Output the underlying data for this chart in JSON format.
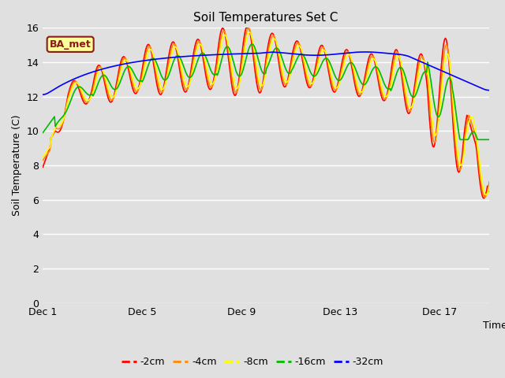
{
  "title": "Soil Temperatures Set C",
  "xlabel": "Time",
  "ylabel": "Soil Temperature (C)",
  "ylim": [
    0,
    16
  ],
  "yticks": [
    0,
    2,
    4,
    6,
    8,
    10,
    12,
    14,
    16
  ],
  "bg_color": "#e0e0e0",
  "colors": {
    "-2cm": "#ff0000",
    "-4cm": "#ff8c00",
    "-8cm": "#ffff00",
    "-16cm": "#00bb00",
    "-32cm": "#0000ff"
  },
  "xtick_labels": [
    "Dec 1",
    "Dec 5",
    "Dec 9",
    "Dec 13",
    "Dec 17"
  ],
  "xtick_positions": [
    0,
    4,
    8,
    12,
    16
  ],
  "annotation_text": "BA_met",
  "annotation_bg": "#ffff99",
  "annotation_border": "#8b1a1a",
  "legend_labels": [
    "-2cm",
    "-4cm",
    "-8cm",
    "-16cm",
    "-32cm"
  ]
}
